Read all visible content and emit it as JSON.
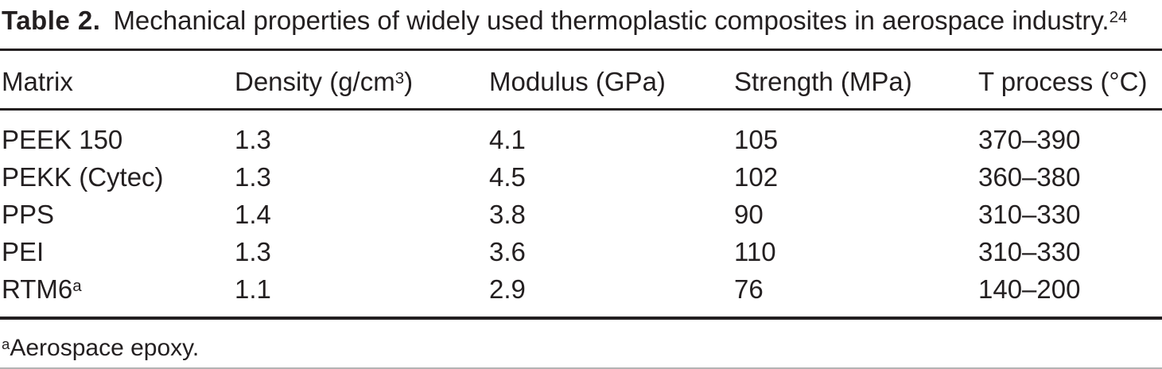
{
  "title": {
    "label": "Table 2.",
    "text": "Mechanical properties of widely used thermoplastic composites in aerospace industry.",
    "citation": "24"
  },
  "table": {
    "columns": [
      {
        "text": "Matrix",
        "sup": "",
        "tail": ""
      },
      {
        "text": "Density (g/cm",
        "sup": "3",
        "tail": ")"
      },
      {
        "text": "Modulus (GPa)",
        "sup": "",
        "tail": ""
      },
      {
        "text": "Strength (MPa)",
        "sup": "",
        "tail": ""
      },
      {
        "text": "T process (°C)",
        "sup": "",
        "tail": ""
      }
    ],
    "rows": [
      {
        "matrix": "PEEK 150",
        "matrix_sup": "",
        "density": "1.3",
        "modulus": "4.1",
        "strength": "105",
        "t_process": "370–390"
      },
      {
        "matrix": "PEKK (Cytec)",
        "matrix_sup": "",
        "density": "1.3",
        "modulus": "4.5",
        "strength": "102",
        "t_process": "360–380"
      },
      {
        "matrix": "PPS",
        "matrix_sup": "",
        "density": "1.4",
        "modulus": "3.8",
        "strength": "90",
        "t_process": "310–330"
      },
      {
        "matrix": "PEI",
        "matrix_sup": "",
        "density": "1.3",
        "modulus": "3.6",
        "strength": "110",
        "t_process": "310–330"
      },
      {
        "matrix": "RTM6",
        "matrix_sup": "a",
        "density": "1.1",
        "modulus": "2.9",
        "strength": "76",
        "t_process": "140–200"
      }
    ]
  },
  "footnote": {
    "marker": "a",
    "text": "Aerospace epoxy."
  },
  "colors": {
    "text": "#231f20",
    "rule": "#231f20",
    "bottom_hairline": "#b4b4b4"
  }
}
